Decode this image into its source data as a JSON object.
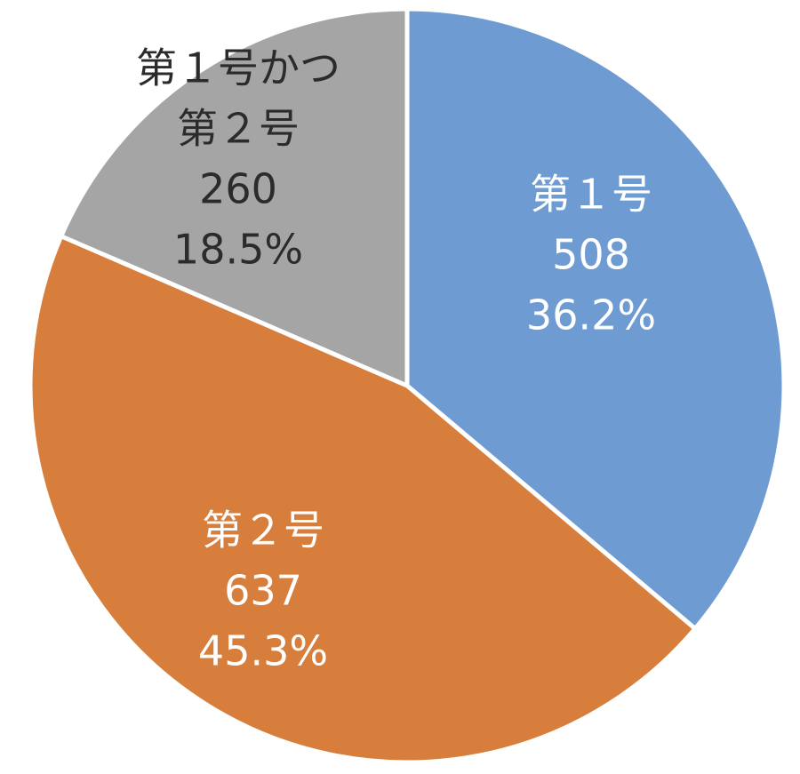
{
  "chart_data": {
    "type": "pie",
    "slices": [
      {
        "name_lines": [
          "第１号"
        ],
        "value": 508,
        "value_label": "508",
        "percent_label": "36.2%",
        "color": "#6f9bd3",
        "text_color": "#ffffff"
      },
      {
        "name_lines": [
          "第２号"
        ],
        "value": 637,
        "value_label": "637",
        "percent_label": "45.3%",
        "color": "#d77e3c",
        "text_color": "#ffffff"
      },
      {
        "name_lines": [
          "第１号かつ",
          "第２号"
        ],
        "value": 260,
        "value_label": "260",
        "percent_label": "18.5%",
        "color": "#a5a5a5",
        "text_color": "#2b2b2b"
      }
    ]
  }
}
